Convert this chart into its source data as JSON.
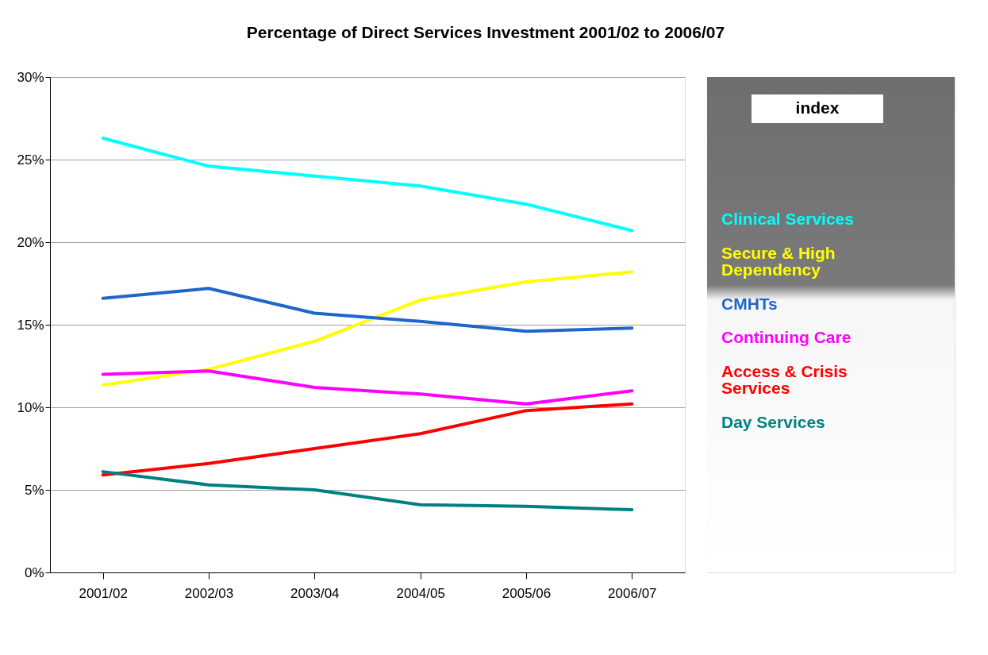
{
  "chart_data": {
    "type": "line",
    "title": "Percentage of Direct Services Investment 2001/02 to 2006/07",
    "categories": [
      "2001/02",
      "2002/03",
      "2003/04",
      "2004/05",
      "2005/06",
      "2006/07"
    ],
    "series": [
      {
        "name": "Clinical Services",
        "color": "#00ffff",
        "values": [
          26.3,
          24.6,
          24.0,
          23.4,
          22.3,
          20.7
        ]
      },
      {
        "name": "Secure & High Dependency",
        "color": "#ffff00",
        "values": [
          11.35,
          12.3,
          14.0,
          16.5,
          17.6,
          18.2
        ]
      },
      {
        "name": "CMHTs",
        "color": "#1f66cc",
        "values": [
          16.6,
          17.2,
          15.7,
          15.2,
          14.6,
          14.8
        ]
      },
      {
        "name": "Continuing Care",
        "color": "#ff00ff",
        "values": [
          12.0,
          12.2,
          11.2,
          10.8,
          10.2,
          11.0
        ]
      },
      {
        "name": "Access & Crisis Services",
        "color": "#ff0000",
        "values": [
          5.9,
          6.6,
          7.5,
          8.4,
          9.8,
          10.2
        ]
      },
      {
        "name": "Day Services",
        "color": "#008080",
        "values": [
          6.1,
          5.3,
          5.0,
          4.1,
          4.0,
          3.8
        ]
      }
    ],
    "ylim": [
      0,
      30
    ],
    "yticks": [
      {
        "value": 0,
        "label": "0%"
      },
      {
        "value": 5,
        "label": "5%"
      },
      {
        "value": 10,
        "label": "10%"
      },
      {
        "value": 15,
        "label": "15%"
      },
      {
        "value": 20,
        "label": "20%"
      },
      {
        "value": 25,
        "label": "25%"
      },
      {
        "value": 30,
        "label": "30%"
      }
    ],
    "grid": "y",
    "legend": "right",
    "legend_title": "index",
    "marker": "none",
    "line_style": "solid"
  }
}
